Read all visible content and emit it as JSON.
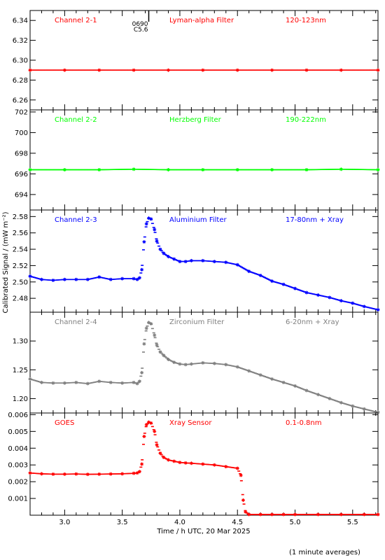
{
  "figure": {
    "ylabel": "Calibrated Signal / (mW m⁻²)",
    "xlabel": "Time / h UTC, 20 Mar 2025",
    "footnote": "(1 minute averages)",
    "x_range": [
      2.7,
      5.72
    ],
    "x_ticks": [
      3.0,
      3.5,
      4.0,
      4.5,
      5.0,
      5.5
    ],
    "x_tick_labels": [
      "3.0",
      "3.5",
      "4.0",
      "4.5",
      "5.0",
      "5.5"
    ],
    "flare_marker": {
      "x": 3.73,
      "labels": [
        "0690",
        "C5.6"
      ]
    }
  },
  "chart_data": [
    {
      "type": "scatter",
      "series": [
        {
          "name": "",
          "color": "#ff0000"
        }
      ],
      "labels": [
        "Channel 2-1",
        "Lyman-alpha Filter",
        "120-123nm"
      ],
      "ylim": [
        6.25,
        6.35
      ],
      "y_ticks": [
        6.26,
        6.28,
        6.3,
        6.32,
        6.34
      ],
      "y_tick_labels": [
        "6.26",
        "6.28",
        "6.30",
        "6.32",
        "6.34"
      ],
      "x": [
        2.7,
        3.0,
        3.3,
        3.6,
        3.9,
        4.2,
        4.5,
        4.8,
        5.1,
        5.4,
        5.72
      ],
      "y": [
        6.29,
        6.29,
        6.29,
        6.29,
        6.29,
        6.29,
        6.29,
        6.29,
        6.29,
        6.29,
        6.29
      ]
    },
    {
      "type": "scatter",
      "series": [
        {
          "name": "",
          "color": "#00ff00"
        }
      ],
      "labels": [
        "Channel 2-2",
        "Herzberg Filter",
        "190-222nm"
      ],
      "ylim": [
        692.5,
        702.2
      ],
      "y_ticks": [
        694,
        696,
        698,
        700,
        702
      ],
      "y_tick_labels": [
        "694",
        "696",
        "698",
        "700",
        "702"
      ],
      "x": [
        2.7,
        3.0,
        3.3,
        3.6,
        3.9,
        4.2,
        4.5,
        4.8,
        5.1,
        5.4,
        5.72
      ],
      "y": [
        696.4,
        696.4,
        696.4,
        696.45,
        696.4,
        696.4,
        696.4,
        696.4,
        696.4,
        696.45,
        696.4
      ]
    },
    {
      "type": "scatter",
      "series": [
        {
          "name": "",
          "color": "#0000ff"
        }
      ],
      "labels": [
        "Channel 2-3",
        "Aluminium Filter",
        "17-80nm + Xray"
      ],
      "ylim": [
        2.463,
        2.588
      ],
      "y_ticks": [
        2.48,
        2.5,
        2.52,
        2.54,
        2.56,
        2.58
      ],
      "y_tick_labels": [
        "2.48",
        "2.50",
        "2.52",
        "2.54",
        "2.56",
        "2.58"
      ],
      "x": [
        2.7,
        2.8,
        2.9,
        3.0,
        3.1,
        3.2,
        3.3,
        3.4,
        3.5,
        3.6,
        3.63,
        3.65,
        3.67,
        3.69,
        3.71,
        3.73,
        3.75,
        3.78,
        3.8,
        3.83,
        3.86,
        3.9,
        3.95,
        4.0,
        4.05,
        4.1,
        4.2,
        4.3,
        4.4,
        4.5,
        4.6,
        4.7,
        4.8,
        4.9,
        5.0,
        5.1,
        5.2,
        5.3,
        5.4,
        5.5,
        5.6,
        5.72
      ],
      "y": [
        2.507,
        2.503,
        2.502,
        2.503,
        2.503,
        2.503,
        2.506,
        2.503,
        2.504,
        2.504,
        2.503,
        2.505,
        2.515,
        2.549,
        2.571,
        2.578,
        2.577,
        2.564,
        2.55,
        2.54,
        2.535,
        2.531,
        2.528,
        2.525,
        2.525,
        2.526,
        2.526,
        2.525,
        2.524,
        2.521,
        2.513,
        2.508,
        2.501,
        2.497,
        2.492,
        2.487,
        2.484,
        2.481,
        2.477,
        2.474,
        2.47,
        2.466
      ]
    },
    {
      "type": "scatter",
      "series": [
        {
          "name": "",
          "color": "#808080"
        }
      ],
      "labels": [
        "Channel 2-4",
        "Zirconium Filter",
        "6-20nm + Xray"
      ],
      "ylim": [
        1.175,
        1.35
      ],
      "y_ticks": [
        1.2,
        1.25,
        1.3
      ],
      "y_tick_labels": [
        "1.20",
        "1.25",
        "1.30"
      ],
      "x": [
        2.7,
        2.8,
        2.9,
        3.0,
        3.1,
        3.2,
        3.3,
        3.4,
        3.5,
        3.6,
        3.63,
        3.65,
        3.67,
        3.69,
        3.71,
        3.73,
        3.75,
        3.78,
        3.8,
        3.83,
        3.86,
        3.9,
        3.95,
        4.0,
        4.05,
        4.1,
        4.2,
        4.3,
        4.4,
        4.5,
        4.6,
        4.7,
        4.8,
        4.9,
        5.0,
        5.1,
        5.2,
        5.3,
        5.4,
        5.5,
        5.6,
        5.72
      ],
      "y": [
        1.234,
        1.228,
        1.227,
        1.227,
        1.228,
        1.226,
        1.23,
        1.228,
        1.227,
        1.228,
        1.226,
        1.23,
        1.245,
        1.295,
        1.322,
        1.332,
        1.33,
        1.31,
        1.293,
        1.281,
        1.275,
        1.268,
        1.263,
        1.26,
        1.259,
        1.26,
        1.262,
        1.261,
        1.259,
        1.255,
        1.248,
        1.241,
        1.234,
        1.228,
        1.222,
        1.214,
        1.207,
        1.2,
        1.193,
        1.187,
        1.182,
        1.176
      ]
    },
    {
      "type": "scatter",
      "series": [
        {
          "name": "",
          "color": "#ff0000"
        }
      ],
      "labels": [
        "GOES",
        "Xray Sensor",
        "0.1-0.8nm"
      ],
      "ylim": [
        0.0,
        0.0061
      ],
      "y_ticks": [
        0.001,
        0.002,
        0.003,
        0.004,
        0.005,
        0.006
      ],
      "y_tick_labels": [
        "0.001",
        "0.002",
        "0.003",
        "0.004",
        "0.005",
        "0.006"
      ],
      "x": [
        2.7,
        2.8,
        2.9,
        3.0,
        3.1,
        3.2,
        3.3,
        3.4,
        3.5,
        3.6,
        3.63,
        3.65,
        3.67,
        3.69,
        3.71,
        3.73,
        3.75,
        3.78,
        3.8,
        3.83,
        3.86,
        3.9,
        3.95,
        4.0,
        4.05,
        4.1,
        4.2,
        4.3,
        4.4,
        4.5,
        4.53,
        4.55,
        4.57,
        4.6,
        4.7,
        4.8,
        4.9,
        5.0,
        5.2,
        5.4,
        5.6,
        5.72
      ],
      "y": [
        0.00252,
        0.00247,
        0.00245,
        0.00245,
        0.00246,
        0.00244,
        0.00245,
        0.00246,
        0.00247,
        0.0025,
        0.00252,
        0.0026,
        0.00305,
        0.0047,
        0.0054,
        0.00555,
        0.0055,
        0.005,
        0.0042,
        0.0037,
        0.00345,
        0.0033,
        0.00322,
        0.00315,
        0.00312,
        0.0031,
        0.00305,
        0.003,
        0.0029,
        0.0028,
        0.00238,
        0.0009,
        0.0002,
        3e-05,
        3e-05,
        3e-05,
        3e-05,
        3e-05,
        3e-05,
        3e-05,
        3e-05,
        3e-05
      ]
    }
  ]
}
